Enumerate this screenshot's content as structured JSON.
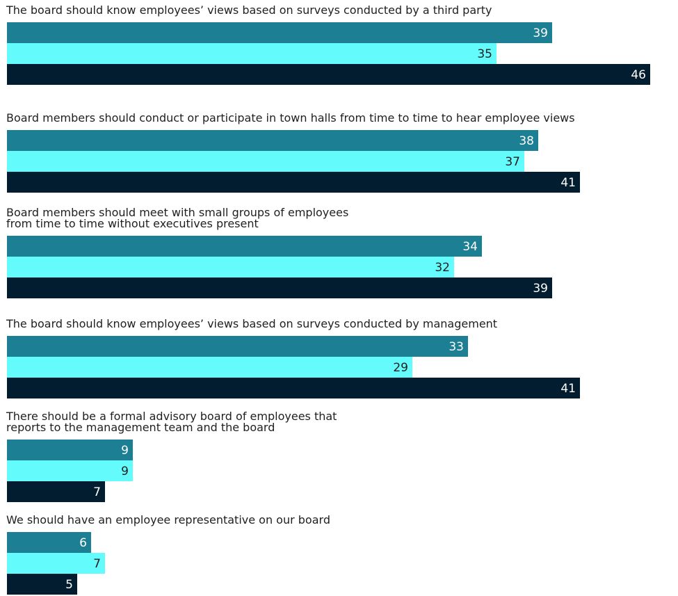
{
  "colors": {
    "series_1": "#1d7f94",
    "series_2": "#63fbfb",
    "series_3": "#021c30",
    "label_dark": "#1f1f1f",
    "label_light": "#ffffff"
  },
  "chart_data": {
    "type": "bar",
    "orientation": "horizontal",
    "grid": false,
    "legend": "none",
    "categories": [
      "The board should know employees’ views based on surveys conducted by a third party",
      "Board members should conduct or participate in town halls from time to time to hear employee views",
      "Board members should meet with small groups of employees\nfrom time to time without executives present",
      "The board should know employees’ views based on surveys conducted by management",
      "There should be a formal advisory board of employees that\nreports to the management team and the board",
      "We should have an employee representative on our board"
    ],
    "series": [
      {
        "values": [
          39,
          38,
          34,
          33,
          9,
          6
        ]
      },
      {
        "values": [
          35,
          37,
          32,
          29,
          9,
          7
        ]
      },
      {
        "values": [
          46,
          41,
          39,
          41,
          7,
          5
        ]
      }
    ],
    "xlim": [
      0,
      46
    ]
  }
}
